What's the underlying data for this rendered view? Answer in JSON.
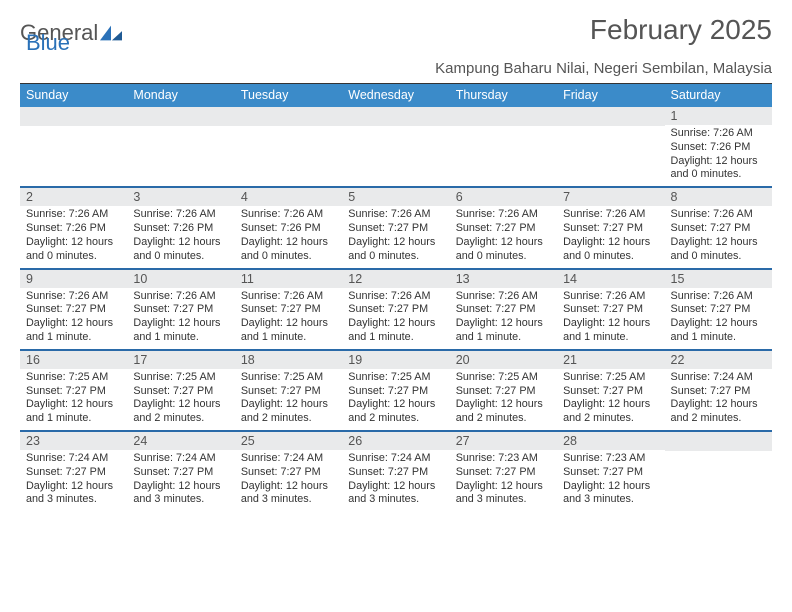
{
  "logo": {
    "text_general": "General",
    "text_blue": "Blue"
  },
  "title": "February 2025",
  "location": "Kampung Baharu Nilai, Negeri Sembilan, Malaysia",
  "colors": {
    "header_bg": "#3b8bc9",
    "week_divider": "#2a6aa8",
    "daynum_bg": "#e9eaeb",
    "top_rule": "#333333",
    "text": "#333333",
    "muted": "#555555"
  },
  "day_headers": [
    "Sunday",
    "Monday",
    "Tuesday",
    "Wednesday",
    "Thursday",
    "Friday",
    "Saturday"
  ],
  "weeks": [
    [
      {
        "n": "",
        "sr": "",
        "ss": "",
        "dl": ""
      },
      {
        "n": "",
        "sr": "",
        "ss": "",
        "dl": ""
      },
      {
        "n": "",
        "sr": "",
        "ss": "",
        "dl": ""
      },
      {
        "n": "",
        "sr": "",
        "ss": "",
        "dl": ""
      },
      {
        "n": "",
        "sr": "",
        "ss": "",
        "dl": ""
      },
      {
        "n": "",
        "sr": "",
        "ss": "",
        "dl": ""
      },
      {
        "n": "1",
        "sr": "Sunrise: 7:26 AM",
        "ss": "Sunset: 7:26 PM",
        "dl": "Daylight: 12 hours and 0 minutes."
      }
    ],
    [
      {
        "n": "2",
        "sr": "Sunrise: 7:26 AM",
        "ss": "Sunset: 7:26 PM",
        "dl": "Daylight: 12 hours and 0 minutes."
      },
      {
        "n": "3",
        "sr": "Sunrise: 7:26 AM",
        "ss": "Sunset: 7:26 PM",
        "dl": "Daylight: 12 hours and 0 minutes."
      },
      {
        "n": "4",
        "sr": "Sunrise: 7:26 AM",
        "ss": "Sunset: 7:26 PM",
        "dl": "Daylight: 12 hours and 0 minutes."
      },
      {
        "n": "5",
        "sr": "Sunrise: 7:26 AM",
        "ss": "Sunset: 7:27 PM",
        "dl": "Daylight: 12 hours and 0 minutes."
      },
      {
        "n": "6",
        "sr": "Sunrise: 7:26 AM",
        "ss": "Sunset: 7:27 PM",
        "dl": "Daylight: 12 hours and 0 minutes."
      },
      {
        "n": "7",
        "sr": "Sunrise: 7:26 AM",
        "ss": "Sunset: 7:27 PM",
        "dl": "Daylight: 12 hours and 0 minutes."
      },
      {
        "n": "8",
        "sr": "Sunrise: 7:26 AM",
        "ss": "Sunset: 7:27 PM",
        "dl": "Daylight: 12 hours and 0 minutes."
      }
    ],
    [
      {
        "n": "9",
        "sr": "Sunrise: 7:26 AM",
        "ss": "Sunset: 7:27 PM",
        "dl": "Daylight: 12 hours and 1 minute."
      },
      {
        "n": "10",
        "sr": "Sunrise: 7:26 AM",
        "ss": "Sunset: 7:27 PM",
        "dl": "Daylight: 12 hours and 1 minute."
      },
      {
        "n": "11",
        "sr": "Sunrise: 7:26 AM",
        "ss": "Sunset: 7:27 PM",
        "dl": "Daylight: 12 hours and 1 minute."
      },
      {
        "n": "12",
        "sr": "Sunrise: 7:26 AM",
        "ss": "Sunset: 7:27 PM",
        "dl": "Daylight: 12 hours and 1 minute."
      },
      {
        "n": "13",
        "sr": "Sunrise: 7:26 AM",
        "ss": "Sunset: 7:27 PM",
        "dl": "Daylight: 12 hours and 1 minute."
      },
      {
        "n": "14",
        "sr": "Sunrise: 7:26 AM",
        "ss": "Sunset: 7:27 PM",
        "dl": "Daylight: 12 hours and 1 minute."
      },
      {
        "n": "15",
        "sr": "Sunrise: 7:26 AM",
        "ss": "Sunset: 7:27 PM",
        "dl": "Daylight: 12 hours and 1 minute."
      }
    ],
    [
      {
        "n": "16",
        "sr": "Sunrise: 7:25 AM",
        "ss": "Sunset: 7:27 PM",
        "dl": "Daylight: 12 hours and 1 minute."
      },
      {
        "n": "17",
        "sr": "Sunrise: 7:25 AM",
        "ss": "Sunset: 7:27 PM",
        "dl": "Daylight: 12 hours and 2 minutes."
      },
      {
        "n": "18",
        "sr": "Sunrise: 7:25 AM",
        "ss": "Sunset: 7:27 PM",
        "dl": "Daylight: 12 hours and 2 minutes."
      },
      {
        "n": "19",
        "sr": "Sunrise: 7:25 AM",
        "ss": "Sunset: 7:27 PM",
        "dl": "Daylight: 12 hours and 2 minutes."
      },
      {
        "n": "20",
        "sr": "Sunrise: 7:25 AM",
        "ss": "Sunset: 7:27 PM",
        "dl": "Daylight: 12 hours and 2 minutes."
      },
      {
        "n": "21",
        "sr": "Sunrise: 7:25 AM",
        "ss": "Sunset: 7:27 PM",
        "dl": "Daylight: 12 hours and 2 minutes."
      },
      {
        "n": "22",
        "sr": "Sunrise: 7:24 AM",
        "ss": "Sunset: 7:27 PM",
        "dl": "Daylight: 12 hours and 2 minutes."
      }
    ],
    [
      {
        "n": "23",
        "sr": "Sunrise: 7:24 AM",
        "ss": "Sunset: 7:27 PM",
        "dl": "Daylight: 12 hours and 3 minutes."
      },
      {
        "n": "24",
        "sr": "Sunrise: 7:24 AM",
        "ss": "Sunset: 7:27 PM",
        "dl": "Daylight: 12 hours and 3 minutes."
      },
      {
        "n": "25",
        "sr": "Sunrise: 7:24 AM",
        "ss": "Sunset: 7:27 PM",
        "dl": "Daylight: 12 hours and 3 minutes."
      },
      {
        "n": "26",
        "sr": "Sunrise: 7:24 AM",
        "ss": "Sunset: 7:27 PM",
        "dl": "Daylight: 12 hours and 3 minutes."
      },
      {
        "n": "27",
        "sr": "Sunrise: 7:23 AM",
        "ss": "Sunset: 7:27 PM",
        "dl": "Daylight: 12 hours and 3 minutes."
      },
      {
        "n": "28",
        "sr": "Sunrise: 7:23 AM",
        "ss": "Sunset: 7:27 PM",
        "dl": "Daylight: 12 hours and 3 minutes."
      },
      {
        "n": "",
        "sr": "",
        "ss": "",
        "dl": ""
      }
    ]
  ]
}
